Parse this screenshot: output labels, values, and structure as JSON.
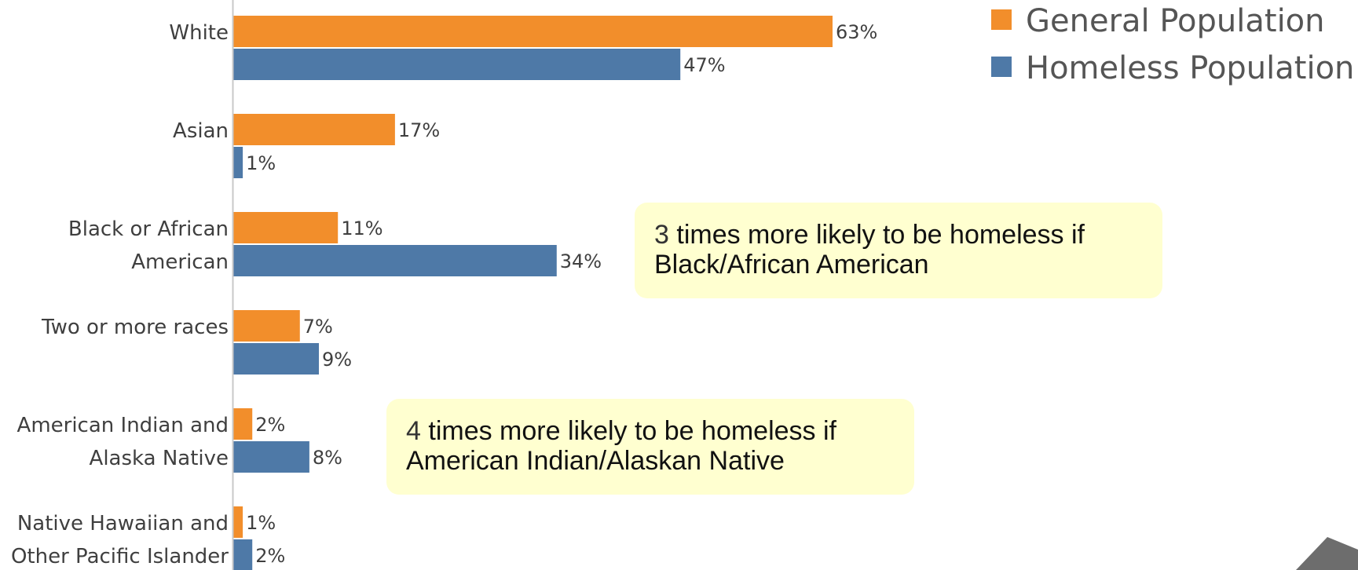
{
  "chart_data": {
    "type": "bar",
    "orientation": "horizontal",
    "categories": [
      [
        "White"
      ],
      [
        "Asian"
      ],
      [
        "Black or African",
        "American"
      ],
      [
        "Two or more races"
      ],
      [
        "American Indian and",
        "Alaska Native"
      ],
      [
        "Native Hawaiian and",
        "Other Pacific Islander"
      ]
    ],
    "series": [
      {
        "name": "General Population",
        "color": "#f28e2b",
        "values": [
          63,
          17,
          11,
          7,
          2,
          1
        ],
        "labels": [
          "63%",
          "17%",
          "11%",
          "7%",
          "2%",
          "1%"
        ]
      },
      {
        "name": "Homeless Population",
        "color": "#4e79a7",
        "values": [
          47,
          1,
          34,
          9,
          8,
          2
        ],
        "labels": [
          "47%",
          "1%",
          "34%",
          "9%",
          "8%",
          "2%"
        ]
      }
    ],
    "xlim": [
      0,
      63
    ],
    "legend_position": "top-right",
    "grid": false
  },
  "annotations": {
    "black": {
      "number": "3",
      "line1": " times more likely to be homeless if",
      "line2": "Black/African American"
    },
    "aian": {
      "number": "4",
      "line1": " times more likely to be homeless if",
      "line2": "American Indian/Alaskan Native"
    }
  },
  "nav_icon": "up-triangle-icon"
}
